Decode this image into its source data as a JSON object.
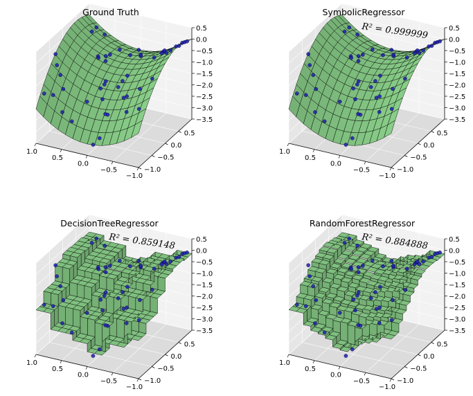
{
  "chart_data": [
    {
      "type": "surface3d",
      "title": "Ground Truth",
      "annotation": "",
      "model": "truth",
      "x_ticks": [
        "−1.0",
        "−0.5",
        "0.0",
        "0.5",
        "1.0"
      ],
      "y_ticks": [
        "−1.0",
        "−0.5",
        "0.0",
        "0.5"
      ],
      "z_ticks": [
        "0.5",
        "0.0",
        "−0.5",
        "−1.0",
        "−1.5",
        "−2.0",
        "−2.5",
        "−3.0",
        "−3.5"
      ],
      "xlim": [
        -1,
        1
      ],
      "ylim": [
        -1,
        1
      ],
      "zlim": [
        -3.5,
        0.5
      ]
    },
    {
      "type": "surface3d",
      "title": "SymbolicRegressor",
      "annotation": "R² = 0.999999",
      "model": "truth",
      "x_ticks": [
        "−1.0",
        "−0.5",
        "0.0",
        "0.5",
        "1.0"
      ],
      "y_ticks": [
        "−1.0",
        "−0.5",
        "0.0",
        "0.5"
      ],
      "z_ticks": [
        "0.5",
        "0.0",
        "−0.5",
        "−1.0",
        "−1.5",
        "−2.0",
        "−2.5",
        "−3.0",
        "−3.5"
      ],
      "xlim": [
        -1,
        1
      ],
      "ylim": [
        -1,
        1
      ],
      "zlim": [
        -3.5,
        0.5
      ]
    },
    {
      "type": "surface3d",
      "title": "DecisionTreeRegressor",
      "annotation": "R² = 0.859148",
      "model": "tree",
      "x_ticks": [
        "−1.0",
        "−0.5",
        "0.0",
        "0.5",
        "1.0"
      ],
      "y_ticks": [
        "−1.0",
        "−0.5",
        "0.0",
        "0.5"
      ],
      "z_ticks": [
        "0.5",
        "0.0",
        "−0.5",
        "−1.0",
        "−1.5",
        "−2.0",
        "−2.5",
        "−3.0",
        "−3.5"
      ],
      "xlim": [
        -1,
        1
      ],
      "ylim": [
        -1,
        1
      ],
      "zlim": [
        -3.5,
        0.5
      ]
    },
    {
      "type": "surface3d",
      "title": "RandomForestRegressor",
      "annotation": "R² = 0.884888",
      "model": "forest",
      "x_ticks": [
        "−1.0",
        "−0.5",
        "0.0",
        "0.5",
        "1.0"
      ],
      "y_ticks": [
        "−1.0",
        "−0.5",
        "0.0",
        "0.5"
      ],
      "z_ticks": [
        "0.5",
        "0.0",
        "−0.5",
        "−1.0",
        "−1.5",
        "−2.0",
        "−2.5",
        "−3.0",
        "−3.5"
      ],
      "xlim": [
        -1,
        1
      ],
      "ylim": [
        -1,
        1
      ],
      "zlim": [
        -3.5,
        0.5
      ]
    }
  ],
  "colors": {
    "surface": "#7fbf7f",
    "pane_light": "#f2f2f2",
    "pane_mid": "#e6e6e6",
    "pane_dark": "#dcdcdc",
    "points": "#1f1faf"
  }
}
